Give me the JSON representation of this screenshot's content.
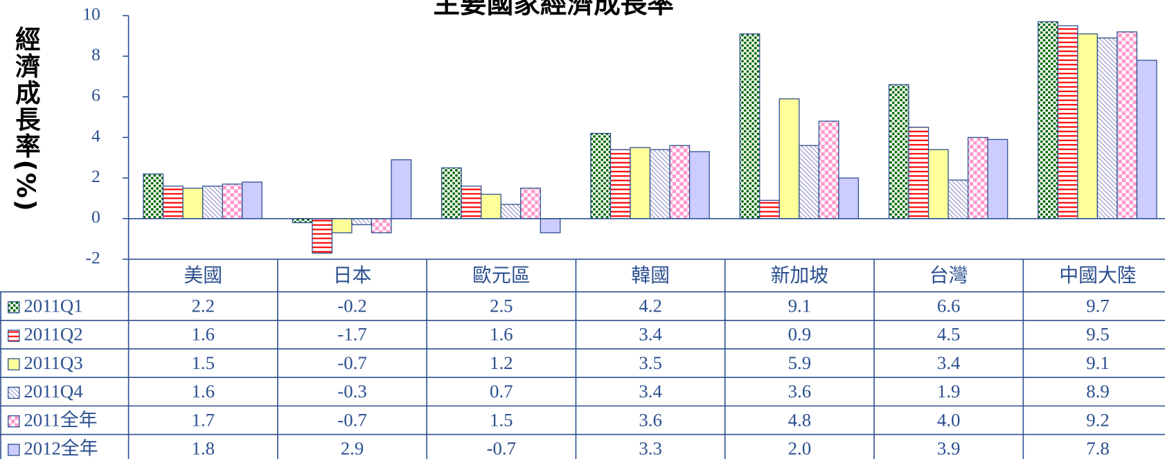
{
  "chart_data": {
    "type": "bar",
    "title": "主要國家經濟成長率",
    "y_label": "經濟成長率(%)",
    "categories": [
      "美國",
      "日本",
      "歐元區",
      "韓國",
      "新加坡",
      "台灣",
      "中國大陸"
    ],
    "ylim": [
      -2,
      10
    ],
    "yticks": [
      -2,
      0,
      2,
      4,
      6,
      8,
      10
    ],
    "series": [
      {
        "name": "2011Q1",
        "color": "#006600",
        "pattern": "dots",
        "values": [
          2.2,
          -0.2,
          2.5,
          4.2,
          9.1,
          6.6,
          9.7
        ],
        "value_labels": [
          "2.2",
          "-0.2",
          "2.5",
          "4.2",
          "9.1",
          "6.6",
          "9.7"
        ]
      },
      {
        "name": "2011Q2",
        "color": "#ff0000",
        "pattern": "hlines",
        "values": [
          1.6,
          -1.7,
          1.6,
          3.4,
          0.9,
          4.5,
          9.5
        ],
        "value_labels": [
          "1.6",
          "-1.7",
          "1.6",
          "3.4",
          "0.9",
          "4.5",
          "9.5"
        ]
      },
      {
        "name": "2011Q3",
        "color": "#ffff99",
        "pattern": "solid",
        "values": [
          1.5,
          -0.7,
          1.2,
          3.5,
          5.9,
          3.4,
          9.1
        ],
        "value_labels": [
          "1.5",
          "-0.7",
          "1.2",
          "3.5",
          "5.9",
          "3.4",
          "9.1"
        ]
      },
      {
        "name": "2011Q4",
        "color": "#9999cc",
        "pattern": "diagonal",
        "values": [
          1.6,
          -0.3,
          0.7,
          3.4,
          3.6,
          1.9,
          8.9
        ],
        "value_labels": [
          "1.6",
          "-0.3",
          "0.7",
          "3.4",
          "3.6",
          "1.9",
          "8.9"
        ]
      },
      {
        "name": "2011全年",
        "color": "#ff99cc",
        "pattern": "checker",
        "values": [
          1.7,
          -0.7,
          1.5,
          3.6,
          4.8,
          4.0,
          9.2
        ],
        "value_labels": [
          "1.7",
          "-0.7",
          "1.5",
          "3.6",
          "4.8",
          "4.0",
          "9.2"
        ]
      },
      {
        "name": "2012全年",
        "color": "#ccccff",
        "pattern": "solid",
        "values": [
          1.8,
          2.9,
          -0.7,
          3.3,
          2.0,
          3.9,
          7.8
        ],
        "value_labels": [
          "1.8",
          "2.9",
          "-0.7",
          "3.3",
          "2.0",
          "3.9",
          "7.8"
        ]
      }
    ]
  }
}
